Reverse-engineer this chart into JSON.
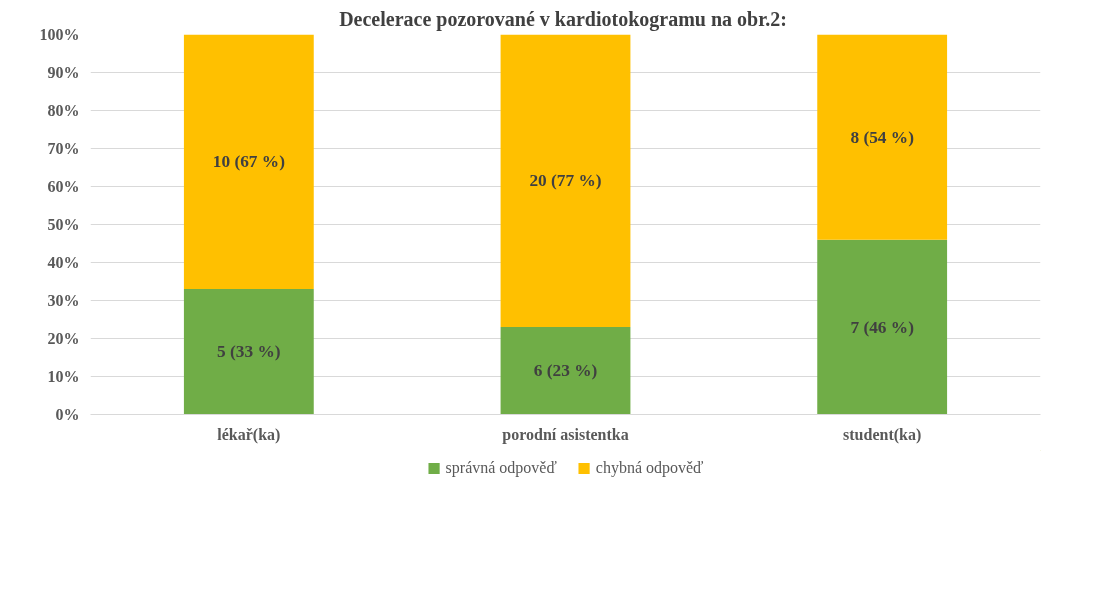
{
  "chart_data": {
    "type": "bar",
    "title": "Decelerace pozorované v kardiotokogramu  na obr.2:",
    "categories": [
      "lékař(ka)",
      "porodní asistentka",
      "student(ka)"
    ],
    "stacked": true,
    "series": [
      {
        "name": "správná odpověď",
        "color": "#70ad47",
        "values": [
          33,
          23,
          46
        ],
        "value_labels": [
          "5 (33 %)",
          "6 (23 %)",
          "7 (46 %)"
        ]
      },
      {
        "name": "chybná odpověď",
        "color": "#ffc000",
        "values": [
          67,
          77,
          54
        ],
        "value_labels": [
          "10 (67 %)",
          "20 (77 %)",
          "8 (54 %)"
        ]
      }
    ],
    "ylim": [
      0,
      100
    ],
    "yticks": [
      {
        "value": 0,
        "label": "0%"
      },
      {
        "value": 10,
        "label": "10%"
      },
      {
        "value": 20,
        "label": "20%"
      },
      {
        "value": 30,
        "label": "30%"
      },
      {
        "value": 40,
        "label": "40%"
      },
      {
        "value": 50,
        "label": "50%"
      },
      {
        "value": 60,
        "label": "60%"
      },
      {
        "value": 70,
        "label": "70%"
      },
      {
        "value": 80,
        "label": "80%"
      },
      {
        "value": 90,
        "label": "90%"
      },
      {
        "value": 100,
        "label": "100%"
      }
    ],
    "grid": "y",
    "legend": "bottom"
  }
}
